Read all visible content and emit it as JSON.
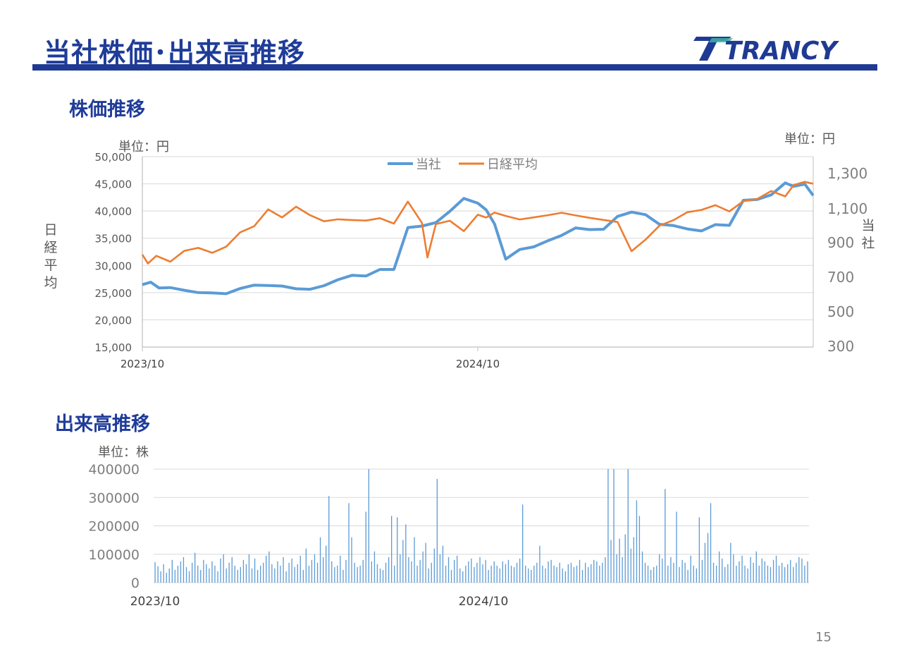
{
  "page": {
    "title": "当社株価･出来高推移",
    "brand": "TRANCY",
    "page_number": "15"
  },
  "colors": {
    "company": "#5b9bd5",
    "nikkei": "#ed7d31",
    "volume": "#5b9bd5",
    "accent": "#1f3c99"
  },
  "price_section": {
    "heading": "株価推移",
    "unit_left": "単位：円",
    "unit_right": "単位：円",
    "left_axis_title": "日経平均",
    "right_axis_title": "当社"
  },
  "volume_section": {
    "heading": "出来高推移",
    "unit": "単位：株"
  },
  "chart_data": [
    {
      "type": "line",
      "x_start": "2023/10",
      "x_end": "2025/10",
      "x_ticks": [
        "2023/10",
        "2024/10"
      ],
      "y_left": {
        "ticks": [
          "50,000",
          "45,000",
          "40,000",
          "35,000",
          "30,000",
          "25,000",
          "20,000",
          "15,000"
        ],
        "ylim": [
          15000,
          50000
        ]
      },
      "y_right": {
        "ticks": [
          "1,300",
          "1,100",
          "900",
          "700",
          "500",
          "300"
        ],
        "ylim": [
          300,
          1400
        ]
      },
      "grid": true,
      "legend": "top-center",
      "series": [
        {
          "name": "当社",
          "axis": "right",
          "t": [
            0,
            0.3,
            0.6,
            1,
            1.5,
            2,
            2.5,
            3,
            3.5,
            4,
            4.5,
            5,
            5.5,
            6,
            6.5,
            7,
            7.5,
            8,
            8.5,
            9,
            9.5,
            10,
            10.5,
            11,
            11.5,
            12,
            12.3,
            12.6,
            13,
            13.5,
            14,
            14.5,
            15,
            15.5,
            16,
            16.5,
            17,
            17.5,
            18,
            18.5,
            19,
            19.5,
            20,
            20.5,
            21,
            21.5,
            22,
            22.5,
            23,
            23.3,
            23.7,
            24
          ],
          "values": [
            660,
            680,
            650,
            655,
            640,
            625,
            620,
            610,
            635,
            650,
            645,
            640,
            625,
            625,
            650,
            690,
            720,
            720,
            760,
            760,
            1000,
            1005,
            1020,
            1080,
            1150,
            1120,
            1080,
            1000,
            800,
            860,
            880,
            920,
            955,
            1000,
            990,
            990,
            1060,
            1080,
            1060,
            1000,
            990,
            970,
            960,
            1000,
            1000,
            1150,
            1160,
            1190,
            1260,
            1240,
            1250,
            1180
          ]
        },
        {
          "name": "日経平均",
          "axis": "left",
          "t": [
            0,
            0.2,
            0.5,
            1,
            1.5,
            2,
            2.5,
            3,
            3.5,
            4,
            4.5,
            5,
            5.5,
            6,
            6.5,
            7,
            7.5,
            8,
            8.5,
            9,
            9.5,
            10,
            10.2,
            10.5,
            11,
            11.5,
            12,
            12.3,
            12.6,
            13,
            13.5,
            14,
            14.5,
            15,
            15.5,
            16,
            16.5,
            17,
            17.5,
            18,
            18.5,
            19,
            19.5,
            20,
            20.5,
            21,
            21.5,
            22,
            22.5,
            23,
            23.3,
            23.7,
            24
          ],
          "values": [
            32000,
            30500,
            32000,
            31000,
            33000,
            33500,
            32500,
            33500,
            36000,
            37000,
            40000,
            38500,
            40500,
            39000,
            38000,
            38500,
            38500,
            38500,
            39000,
            38000,
            42000,
            38000,
            31500,
            37500,
            38000,
            36000,
            39000,
            38500,
            39500,
            39000,
            38500,
            39000,
            39500,
            40000,
            39500,
            39000,
            38500,
            38000,
            32500,
            34500,
            37000,
            38000,
            39500,
            40000,
            41000,
            40000,
            42000,
            42500,
            44000,
            43000,
            45000,
            45500,
            45000
          ]
        }
      ]
    },
    {
      "type": "bar",
      "x_start": "2023/10",
      "x_end": "2025/10",
      "x_ticks": [
        "2023/10",
        "2024/10"
      ],
      "y_ticks": [
        "400000",
        "300000",
        "200000",
        "100000",
        "0"
      ],
      "ylim": [
        0,
        400000
      ],
      "grid": true,
      "series": [
        {
          "name": "",
          "values": [
            72000,
            58000,
            40000,
            65000,
            35000,
            50000,
            80000,
            45000,
            60000,
            75000,
            90000,
            55000,
            40000,
            70000,
            105000,
            60000,
            45000,
            80000,
            65000,
            50000,
            75000,
            60000,
            40000,
            85000,
            100000,
            50000,
            70000,
            90000,
            60000,
            45000,
            55000,
            80000,
            65000,
            100000,
            50000,
            85000,
            45000,
            60000,
            70000,
            95000,
            110000,
            65000,
            50000,
            75000,
            60000,
            90000,
            40000,
            70000,
            85000,
            55000,
            65000,
            95000,
            45000,
            120000,
            60000,
            80000,
            100000,
            70000,
            160000,
            90000,
            130000,
            305000,
            75000,
            55000,
            60000,
            95000,
            45000,
            80000,
            280000,
            160000,
            70000,
            55000,
            60000,
            80000,
            250000,
            400000,
            75000,
            110000,
            65000,
            50000,
            45000,
            70000,
            90000,
            235000,
            60000,
            230000,
            100000,
            150000,
            205000,
            90000,
            75000,
            160000,
            60000,
            80000,
            110000,
            140000,
            50000,
            70000,
            120000,
            365000,
            100000,
            130000,
            60000,
            90000,
            45000,
            80000,
            95000,
            50000,
            40000,
            60000,
            75000,
            85000,
            55000,
            70000,
            90000,
            65000,
            80000,
            45000,
            60000,
            75000,
            60000,
            50000,
            75000,
            65000,
            80000,
            60000,
            55000,
            70000,
            85000,
            275000,
            60000,
            50000,
            45000,
            60000,
            70000,
            130000,
            60000,
            50000,
            75000,
            80000,
            60000,
            55000,
            70000,
            50000,
            40000,
            65000,
            70000,
            55000,
            60000,
            80000,
            45000,
            70000,
            55000,
            65000,
            80000,
            75000,
            60000,
            70000,
            90000,
            400000,
            150000,
            400000,
            100000,
            155000,
            90000,
            170000,
            400000,
            120000,
            160000,
            290000,
            235000,
            110000,
            70000,
            60000,
            45000,
            55000,
            60000,
            100000,
            85000,
            330000,
            60000,
            90000,
            70000,
            250000,
            55000,
            80000,
            70000,
            45000,
            95000,
            60000,
            50000,
            230000,
            80000,
            140000,
            175000,
            280000,
            70000,
            60000,
            110000,
            85000,
            55000,
            65000,
            140000,
            100000,
            60000,
            75000,
            95000,
            60000,
            50000,
            90000,
            70000,
            110000,
            60000,
            85000,
            75000,
            60000,
            55000,
            80000,
            95000,
            60000,
            70000,
            55000,
            65000,
            80000,
            55000,
            70000,
            90000,
            85000,
            60000,
            75000
          ]
        }
      ]
    }
  ]
}
